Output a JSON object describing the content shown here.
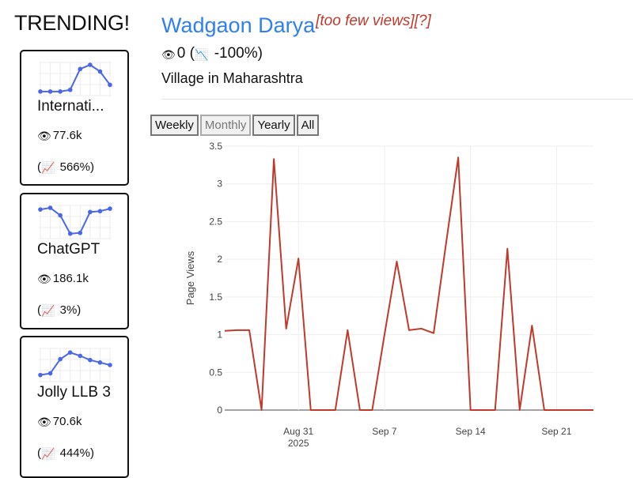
{
  "sidebar": {
    "title": "TRENDING!",
    "cards": [
      {
        "title": "Internati...",
        "views": "77.6k",
        "change": "566%)",
        "spark": [
          3,
          3,
          3,
          5,
          30,
          35,
          27,
          11
        ]
      },
      {
        "title": "ChatGPT",
        "views": "186.1k",
        "change": "3%)",
        "spark": [
          33,
          35,
          26,
          4,
          5,
          30,
          31,
          34
        ]
      },
      {
        "title": "Jolly LLB 3",
        "views": "70.6k",
        "change": "444%)",
        "spark": [
          6,
          8,
          25,
          33,
          29,
          24,
          21,
          18
        ]
      }
    ]
  },
  "article": {
    "title": "Wadgaon Darya",
    "flags": "[too few views][?]",
    "views": "0",
    "change": "-100%)",
    "description": "Village in Maharashtra"
  },
  "buttons": [
    "Weekly",
    "Monthly",
    "Yearly",
    "All"
  ],
  "active_button": "Monthly",
  "icons": {
    "views": "eye-money-icon",
    "up": "chart-up-icon",
    "down": "chart-down-icon"
  },
  "colors": {
    "link": "#2f80ed",
    "flag": "#c0392b",
    "line": "#c0392b",
    "spark": "#4a67e8"
  },
  "chart_data": {
    "type": "line",
    "ylabel": "Page Views",
    "xlabel": "",
    "ylim": [
      0,
      3.5
    ],
    "yticks": [
      "0",
      "0.5",
      "1",
      "1.5",
      "2",
      "2.5",
      "3",
      "3.5"
    ],
    "xticks": [
      {
        "label": "Aug 31",
        "sub": "2025",
        "day": 6
      },
      {
        "label": "Sep 7",
        "sub": "",
        "day": 13
      },
      {
        "label": "Sep 14",
        "sub": "",
        "day": 20
      },
      {
        "label": "Sep 21",
        "sub": "",
        "day": 27
      }
    ],
    "x_start": "Aug 25",
    "values": [
      1.05,
      1.06,
      1.06,
      0,
      3.33,
      1.08,
      2.01,
      0,
      0,
      0,
      1.06,
      0,
      0,
      1.0,
      1.97,
      1.06,
      1.08,
      1.02,
      2.2,
      3.35,
      0,
      0,
      0,
      2.14,
      0,
      1.12,
      0,
      0,
      0,
      0,
      0
    ]
  }
}
